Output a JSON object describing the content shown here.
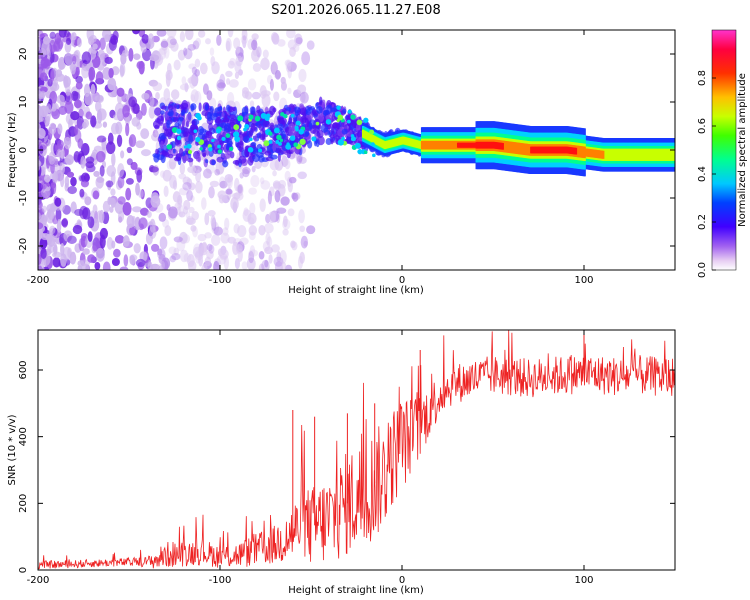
{
  "figure_title": "S201.2026.065.11.27.E08",
  "colors": {
    "snr_line": "#ee2222",
    "axis": "#000000",
    "colormap": [
      "#ffffff",
      "#e6ccf2",
      "#8a2be2",
      "#3300ff",
      "#0000ff",
      "#00ccff",
      "#00ff80",
      "#80ff00",
      "#ffff00",
      "#ff8000",
      "#ff0000",
      "#ff33cc"
    ]
  },
  "chart_data": [
    {
      "type": "heatmap",
      "title": "",
      "xlabel": "Height of straight line (km)",
      "ylabel": "Frequency (Hz)",
      "xlim": [
        -200,
        150
      ],
      "ylim": [
        -25,
        25
      ],
      "xticks": [
        -200,
        -100,
        0,
        100
      ],
      "yticks": [
        -20,
        -10,
        0,
        10,
        20
      ],
      "ridge": {
        "x": [
          -130,
          -100,
          -80,
          -60,
          -45,
          -30,
          -20,
          -10,
          0,
          10,
          30,
          50,
          70,
          90,
          110,
          130,
          150
        ],
        "center_hz": [
          4,
          3,
          3,
          4,
          6,
          5,
          3,
          1,
          2,
          1,
          1,
          1,
          0,
          0,
          -1,
          -1,
          -1
        ]
      },
      "colorbar": {
        "label": "Normalized spectral amplitude",
        "range": [
          0,
          1
        ],
        "ticks": [
          "0.0",
          "0.2",
          "0.4",
          "0.6",
          "0.8"
        ]
      }
    },
    {
      "type": "line",
      "title": "",
      "xlabel": "Height of straight line (km)",
      "ylabel": "SNR (10 * v/v)",
      "xlim": [
        -200,
        150
      ],
      "ylim": [
        0,
        720
      ],
      "xticks": [
        -200,
        -100,
        0,
        100
      ],
      "yticks": [
        0,
        200,
        400,
        600
      ],
      "series": [
        {
          "name": "SNR",
          "x": [
            -200,
            -180,
            -160,
            -140,
            -135,
            -130,
            -120,
            -110,
            -100,
            -90,
            -80,
            -70,
            -60,
            -55,
            -50,
            -40,
            -30,
            -20,
            -15,
            -10,
            -5,
            0,
            5,
            10,
            15,
            20,
            25,
            30,
            40,
            50,
            60,
            70,
            80,
            90,
            100,
            110,
            120,
            130,
            140,
            150
          ],
          "mean": [
            15,
            18,
            22,
            25,
            30,
            45,
            50,
            55,
            40,
            45,
            60,
            75,
            110,
            140,
            130,
            150,
            200,
            230,
            260,
            280,
            340,
            380,
            400,
            430,
            480,
            520,
            545,
            560,
            575,
            585,
            580,
            575,
            580,
            585,
            590,
            585,
            580,
            585,
            580,
            580
          ],
          "amp": [
            12,
            12,
            12,
            15,
            30,
            40,
            40,
            40,
            35,
            40,
            50,
            60,
            90,
            110,
            120,
            140,
            160,
            170,
            170,
            160,
            150,
            140,
            120,
            100,
            80,
            70,
            60,
            60,
            60,
            60,
            60,
            60,
            60,
            60,
            60,
            60,
            60,
            60,
            60,
            60
          ],
          "spikes": [
            [
              -60,
              480
            ],
            [
              -48,
              460
            ],
            [
              -30,
              470
            ],
            [
              -15,
              500
            ],
            [
              10,
              660
            ],
            [
              100,
              720
            ]
          ]
        }
      ]
    }
  ]
}
